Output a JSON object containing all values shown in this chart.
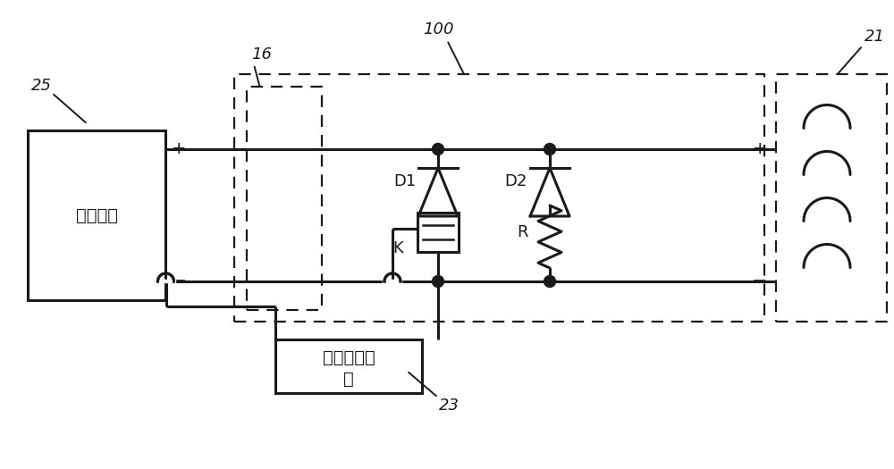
{
  "background_color": "#ffffff",
  "line_color": "#1a1a1a",
  "line_width": 2.2,
  "label_25": "25",
  "label_100": "100",
  "label_16": "16",
  "label_21": "21",
  "label_23": "23",
  "label_D1": "D1",
  "label_D2": "D2",
  "label_K": "K",
  "label_R": "R",
  "label_source": "抱闸电源",
  "label_control_1": "抱闸控制设",
  "label_control_2": "备",
  "label_plus": "+",
  "label_minus": "−",
  "font_size_main": 14,
  "font_size_ref": 13,
  "font_size_comp": 13
}
